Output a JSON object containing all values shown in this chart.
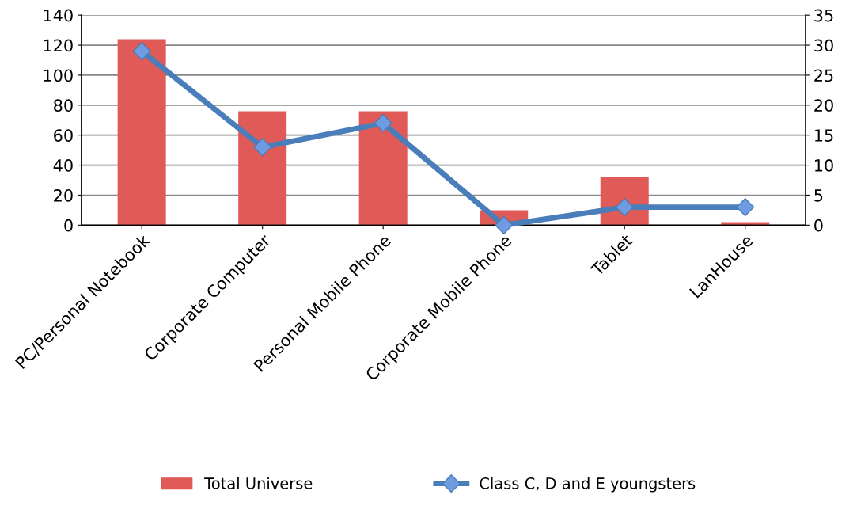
{
  "chart_data": {
    "type": "bar",
    "categories": [
      "PC/Personal Notebook",
      "Corporate Computer",
      "Personal Mobile Phone",
      "Corporate Mobile Phone",
      "Tablet",
      "LanHouse"
    ],
    "series": [
      {
        "name": "Total Universe",
        "color": "#e05a57",
        "values": [
          124,
          76,
          76,
          10,
          32,
          2
        ]
      },
      {
        "name": "Class C, D and E youngsters",
        "type": "line",
        "axis": "y2",
        "color": "#4a7ebb",
        "values": [
          29,
          13,
          17,
          0,
          3,
          3
        ]
      }
    ],
    "ylim": [
      0,
      140
    ],
    "yticks": [
      0,
      20,
      40,
      60,
      80,
      100,
      120,
      140
    ],
    "y2lim": [
      0,
      35
    ],
    "y2ticks": [
      0,
      5,
      10,
      15,
      20,
      25,
      30,
      35
    ],
    "grid": "y",
    "legend": "bottom",
    "marker": "diamond",
    "line_style": "solid"
  }
}
